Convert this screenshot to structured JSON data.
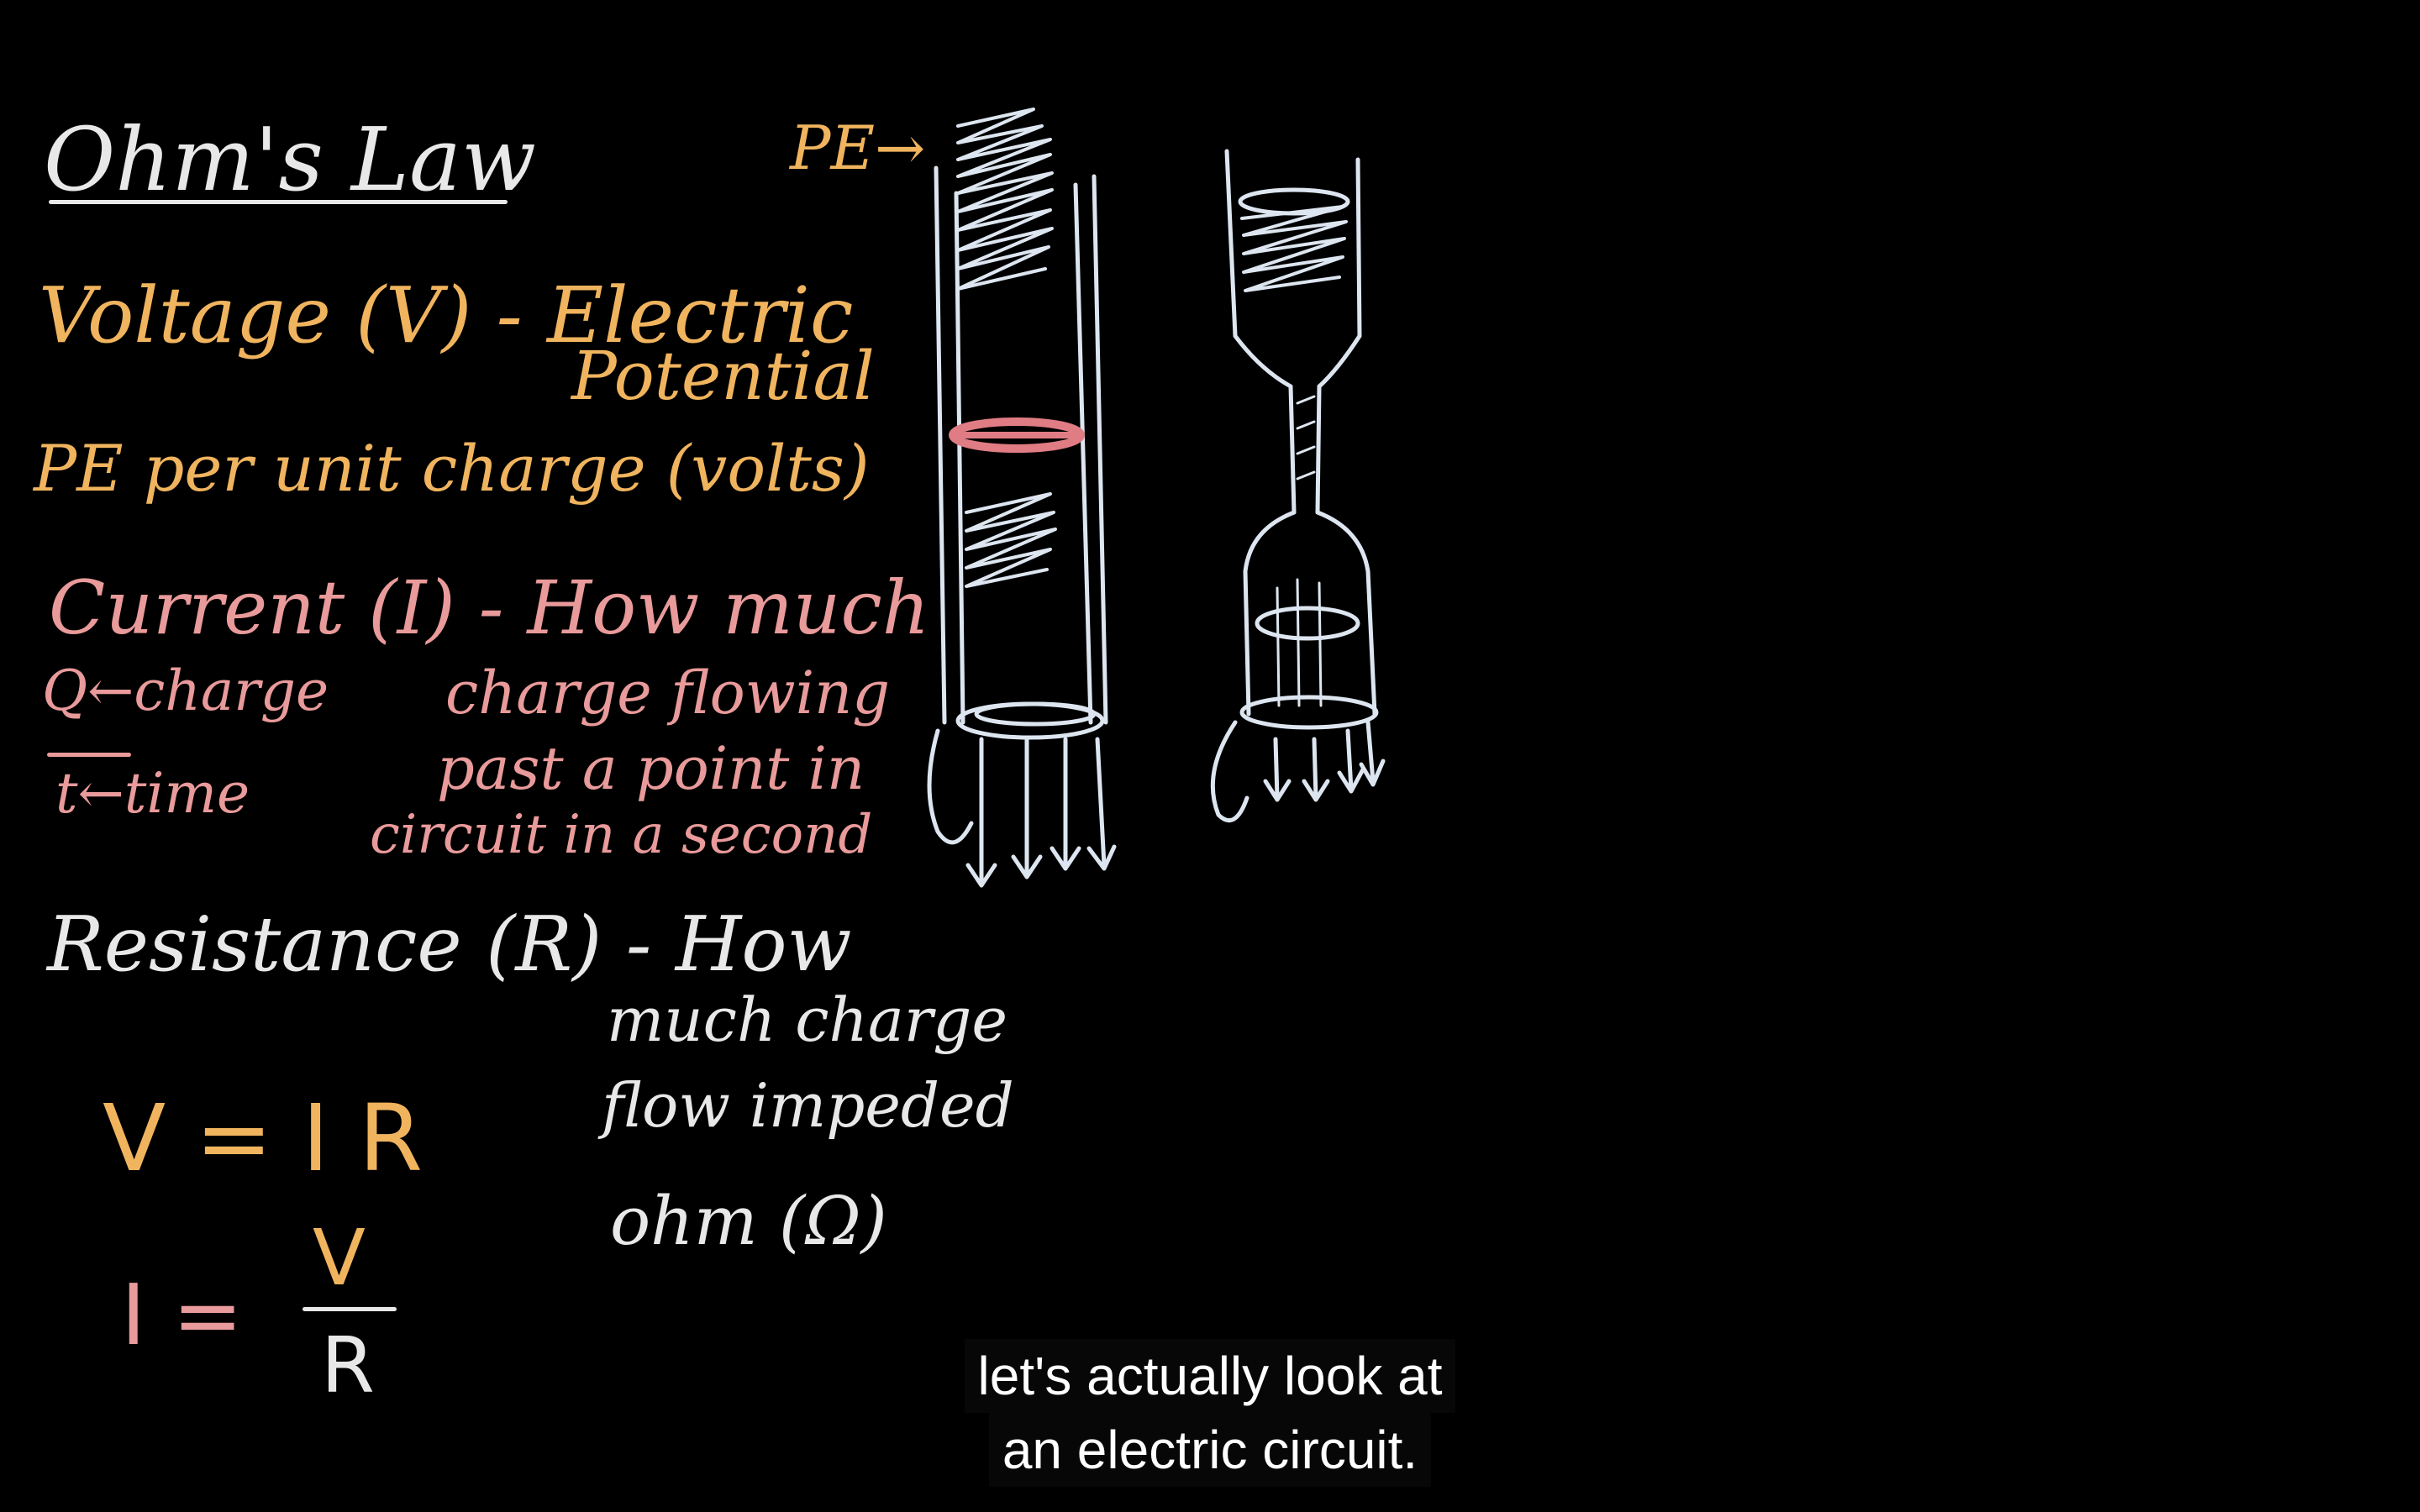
{
  "title": "Ohm's Law",
  "voltage": {
    "heading": "Voltage (V) - Electric",
    "continuation": "Potential",
    "definition": "PE per unit charge (volts)"
  },
  "current": {
    "heading": "Current (I) - How much",
    "line2": "charge flowing",
    "line3": "past a point in",
    "line4": "circuit in a second",
    "q_note": "Q←charge",
    "t_note": "t←time"
  },
  "resistance": {
    "heading": "Resistance (R) - How",
    "line2": "much charge",
    "line3": "flow impeded",
    "unit": "ohm (Ω)"
  },
  "formulas": {
    "ohm_law": "V = I R",
    "current_lhs": "I =",
    "current_num": "V",
    "current_den": "R"
  },
  "diagram": {
    "pe_label": "PE→"
  },
  "subtitles": {
    "line1": "let's actually look at",
    "line2": "an electric circuit."
  },
  "colors": {
    "white_chalk": "#e8e8e8",
    "yellow_chalk": "#f0b45e",
    "pink_chalk": "#e99a9a",
    "highlight": "#e07c84"
  }
}
